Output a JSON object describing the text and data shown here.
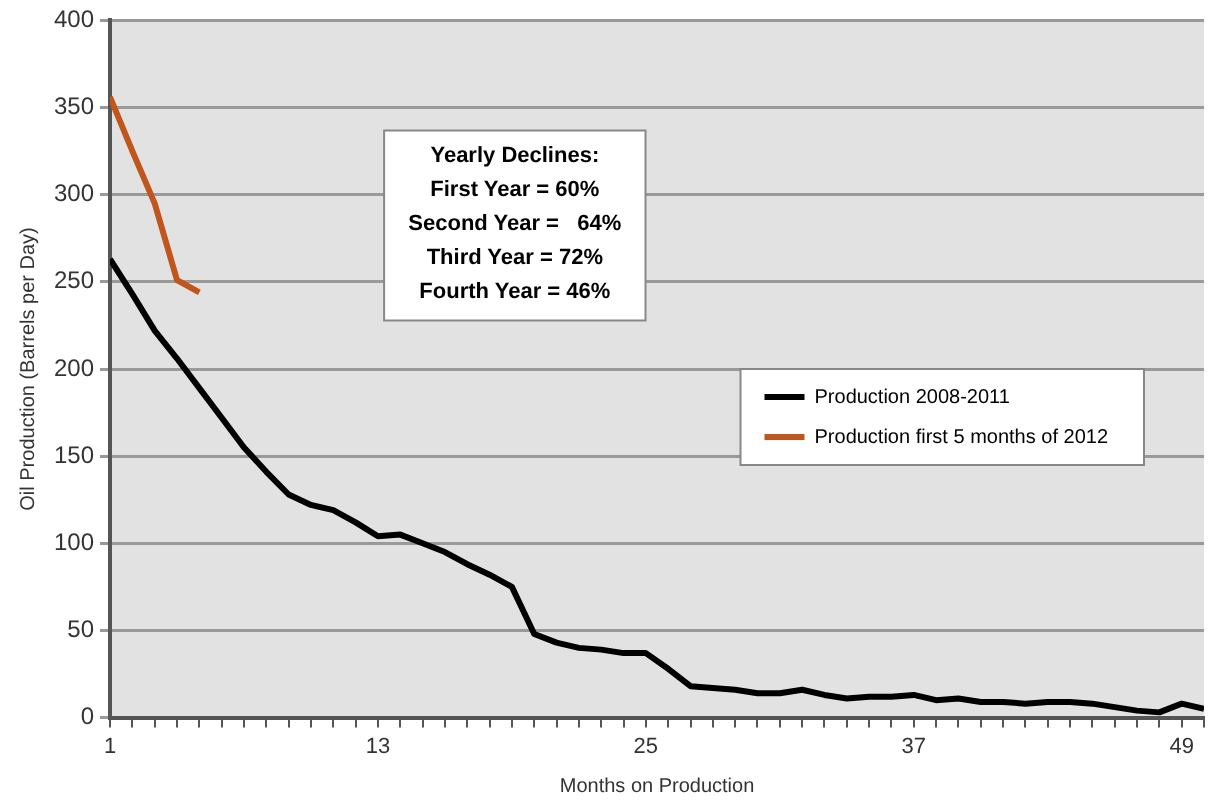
{
  "chart_data": {
    "type": "line",
    "xlabel": "Months on Production",
    "ylabel": "Oil Production (Barrels per Day)",
    "x": [
      1,
      2,
      3,
      4,
      5,
      6,
      7,
      8,
      9,
      10,
      11,
      12,
      13,
      14,
      15,
      16,
      17,
      18,
      19,
      20,
      21,
      22,
      23,
      24,
      25,
      26,
      27,
      28,
      29,
      30,
      31,
      32,
      33,
      34,
      35,
      36,
      37,
      38,
      39,
      40,
      41,
      42,
      43,
      44,
      45,
      46,
      47,
      48,
      49,
      50
    ],
    "xlim": [
      1,
      50
    ],
    "xticks": [
      1,
      {
        "value": 2,
        "label": null
      },
      {
        "value": 3,
        "label": null
      },
      {
        "value": 4,
        "label": null
      },
      {
        "value": 5,
        "label": null
      },
      {
        "value": 6,
        "label": null
      },
      {
        "value": 7,
        "label": null
      },
      {
        "value": 8,
        "label": null
      },
      {
        "value": 9,
        "label": null
      },
      {
        "value": 10,
        "label": null
      },
      {
        "value": 11,
        "label": null
      },
      {
        "value": 12,
        "label": null
      },
      13,
      {
        "value": 14,
        "label": null
      },
      {
        "value": 15,
        "label": null
      },
      {
        "value": 16,
        "label": null
      },
      {
        "value": 17,
        "label": null
      },
      {
        "value": 18,
        "label": null
      },
      {
        "value": 19,
        "label": null
      },
      {
        "value": 20,
        "label": null
      },
      {
        "value": 21,
        "label": null
      },
      {
        "value": 22,
        "label": null
      },
      {
        "value": 23,
        "label": null
      },
      {
        "value": 24,
        "label": null
      },
      25,
      {
        "value": 26,
        "label": null
      },
      {
        "value": 27,
        "label": null
      },
      {
        "value": 28,
        "label": null
      },
      {
        "value": 29,
        "label": null
      },
      {
        "value": 30,
        "label": null
      },
      {
        "value": 31,
        "label": null
      },
      {
        "value": 32,
        "label": null
      },
      {
        "value": 33,
        "label": null
      },
      {
        "value": 34,
        "label": null
      },
      {
        "value": 35,
        "label": null
      },
      {
        "value": 36,
        "label": null
      },
      37,
      {
        "value": 38,
        "label": null
      },
      {
        "value": 39,
        "label": null
      },
      {
        "value": 40,
        "label": null
      },
      {
        "value": 41,
        "label": null
      },
      {
        "value": 42,
        "label": null
      },
      {
        "value": 43,
        "label": null
      },
      {
        "value": 44,
        "label": null
      },
      {
        "value": 45,
        "label": null
      },
      {
        "value": 46,
        "label": null
      },
      {
        "value": 47,
        "label": null
      },
      {
        "value": 48,
        "label": null
      },
      49,
      {
        "value": 50,
        "label": null
      }
    ],
    "ylim": [
      0,
      400
    ],
    "yticks": [
      0,
      50,
      100,
      150,
      200,
      250,
      300,
      350,
      400
    ],
    "grid": "y",
    "legend": "right",
    "marker": "none",
    "line_style": "solid",
    "series": [
      {
        "name": "Production 2008-2011",
        "color": "#000000",
        "values": [
          263,
          243,
          222,
          206,
          189,
          172,
          155,
          141,
          128,
          122,
          119,
          112,
          104,
          105,
          100,
          95,
          88,
          82,
          75,
          48,
          43,
          40,
          39,
          37,
          37,
          28,
          18,
          17,
          16,
          14,
          14,
          16,
          13,
          11,
          12,
          12,
          13,
          10,
          11,
          9,
          9,
          8,
          9,
          9,
          8,
          6,
          4,
          3,
          8,
          5
        ]
      },
      {
        "name": "Production first 5 months of 2012",
        "color": "#c0561e",
        "x": [
          1,
          2,
          3,
          4,
          5
        ],
        "values": [
          356,
          325,
          295,
          251,
          244
        ]
      }
    ],
    "annotations": [
      "Yearly Declines:\nFirst Year = 60%\nSecond Year =   64%\nThird Year = 72%\nFourth Year = 46%"
    ]
  }
}
